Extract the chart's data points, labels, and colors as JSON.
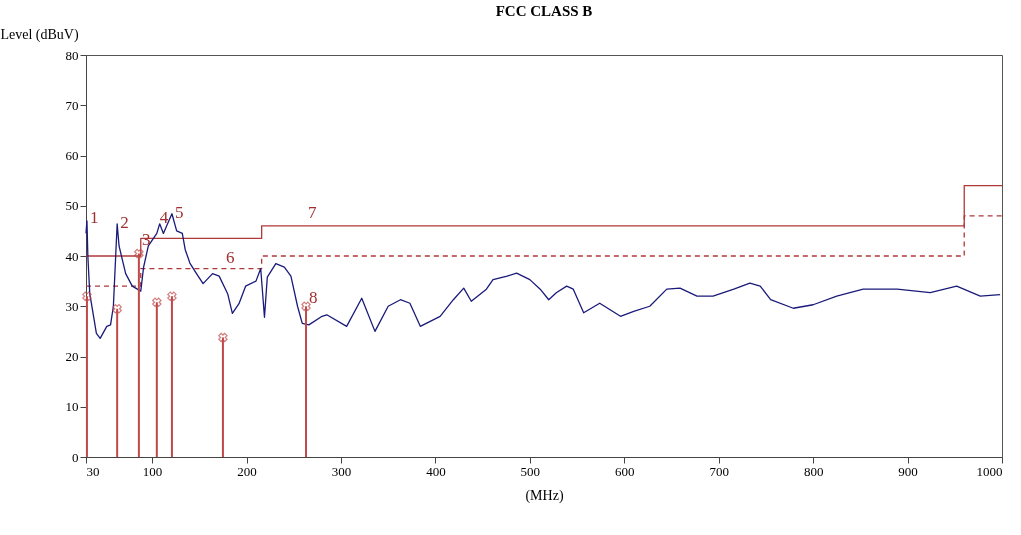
{
  "chart_data": {
    "type": "line",
    "title": "FCC   CLASS B",
    "xlabel": "(MHz)",
    "ylabel": "Level (dBuV)",
    "xlim": [
      30,
      1000
    ],
    "xticks": [
      30,
      100,
      200,
      300,
      400,
      500,
      600,
      700,
      800,
      900,
      1000
    ],
    "ylim": [
      0,
      80
    ],
    "yticks": [
      0,
      10,
      20,
      30,
      40,
      50,
      60,
      70,
      80
    ],
    "grid": false,
    "series": [
      {
        "type": "step",
        "color": "#b03838",
        "line_style": "solid",
        "x": [
          30,
          88,
          216,
          960,
          1000
        ],
        "values": [
          40,
          43.5,
          46,
          54,
          54
        ]
      },
      {
        "type": "step",
        "color": "#b03838",
        "line_style": "dashed",
        "x": [
          30,
          88,
          216,
          960,
          1000
        ],
        "values": [
          34,
          37.5,
          40,
          48,
          48
        ]
      },
      {
        "color": "#1a1a7a",
        "x": [
          30,
          31,
          32,
          34,
          41,
          45,
          52,
          56,
          59,
          63,
          65,
          72,
          79,
          88,
          91,
          96,
          105,
          108,
          112,
          115,
          121,
          126,
          132,
          135,
          140,
          147,
          154,
          164,
          171,
          180,
          185,
          192,
          199,
          210,
          215,
          219,
          222,
          231,
          240,
          247,
          254,
          259,
          266,
          280,
          285,
          306,
          322,
          336,
          350,
          363,
          373,
          384,
          405,
          419,
          430,
          438,
          454,
          461,
          476,
          486,
          500,
          511,
          520,
          528,
          539,
          546,
          557,
          574,
          596,
          610,
          627,
          645,
          659,
          677,
          694,
          716,
          733,
          744,
          755,
          779,
          800,
          825,
          853,
          889,
          924,
          952,
          977,
          998
        ],
        "values": [
          44.5,
          47,
          39.8,
          32.5,
          24.6,
          23.6,
          26,
          26.3,
          30,
          46.4,
          42,
          36.5,
          34,
          33,
          37.8,
          42,
          44.5,
          46.4,
          44.5,
          45.8,
          48.4,
          45,
          44.5,
          41.3,
          38.6,
          36.5,
          34.5,
          36.5,
          36,
          32.5,
          28.6,
          30.5,
          34,
          35,
          37.5,
          27.8,
          35.8,
          38.5,
          37.8,
          36,
          30,
          26.6,
          26.3,
          28,
          28.3,
          26,
          31.6,
          25,
          30,
          31.3,
          30.6,
          26,
          28,
          31.3,
          33.6,
          31,
          33.4,
          35.3,
          36,
          36.6,
          35.3,
          33.4,
          31.3,
          32.7,
          34,
          33.4,
          28.7,
          30.6,
          28,
          29,
          30,
          33.4,
          33.6,
          32,
          32,
          33.4,
          34.6,
          34,
          31.3,
          29.6,
          30.3,
          32,
          33.4,
          33.4,
          32.7,
          34,
          32,
          32.3
        ]
      },
      {
        "type": "lollipop",
        "color": "#c04848",
        "marker": "cross",
        "x": [
          31,
          63,
          86,
          105,
          121,
          175,
          263
        ],
        "values": [
          32,
          29.5,
          40.5,
          30.8,
          32,
          23.8,
          30
        ]
      }
    ],
    "annotations": [
      {
        "text": "1",
        "x": 31,
        "y": 45
      },
      {
        "text": "2",
        "x": 63,
        "y": 44
      },
      {
        "text": "3",
        "x": 86,
        "y": 40.5
      },
      {
        "text": "4",
        "x": 105,
        "y": 45
      },
      {
        "text": "5",
        "x": 121,
        "y": 46
      },
      {
        "text": "6",
        "x": 175,
        "y": 37
      },
      {
        "text": "7",
        "x": 262,
        "y": 46
      },
      {
        "text": "8",
        "x": 263,
        "y": 29
      }
    ]
  }
}
